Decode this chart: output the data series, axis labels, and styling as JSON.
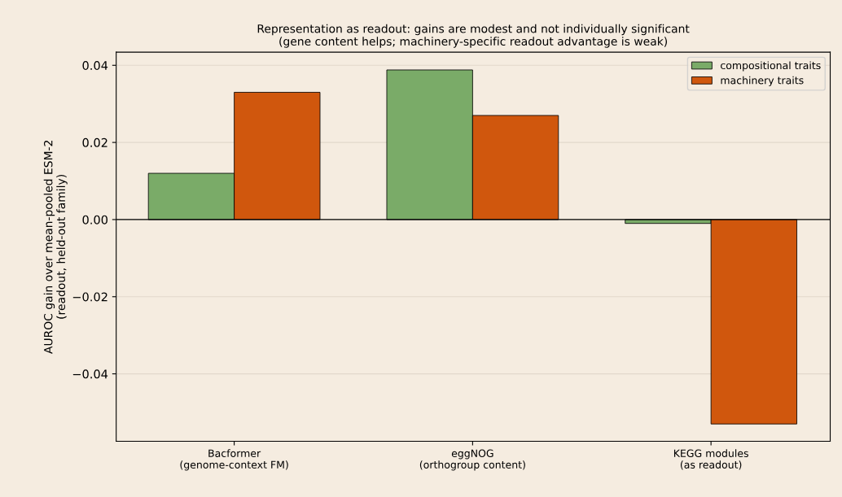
{
  "chart_data": {
    "type": "bar",
    "title": "Representation as readout: gains are modest and not individually significant\n(gene content helps; machinery-specific readout advantage is weak)",
    "ylabel": "AUROC gain over mean-pooled ESM-2\n(readout, held-out family)",
    "categories": [
      "Bacformer\n(genome-context FM)",
      "eggNOG\n(orthogroup content)",
      "KEGG modules\n(as readout)"
    ],
    "series": [
      {
        "name": "compositional traits",
        "color": "#7aab68",
        "values": [
          0.012,
          0.0388,
          -0.001
        ]
      },
      {
        "name": "machinery traits",
        "color": "#d0570d",
        "values": [
          0.033,
          0.027,
          -0.053
        ]
      }
    ],
    "ylim": [
      -0.0575,
      0.0434
    ],
    "yticks": [
      {
        "value": -0.04,
        "label": "−0.04"
      },
      {
        "value": -0.02,
        "label": "−0.02"
      },
      {
        "value": 0,
        "label": "0.00"
      },
      {
        "value": 0.02,
        "label": "0.02"
      },
      {
        "value": 0.04,
        "label": "0.04"
      }
    ],
    "ref_lines": [
      {
        "axis": "y",
        "value": 0,
        "color": "#000000"
      }
    ],
    "grid": "y",
    "legend": "top right"
  }
}
